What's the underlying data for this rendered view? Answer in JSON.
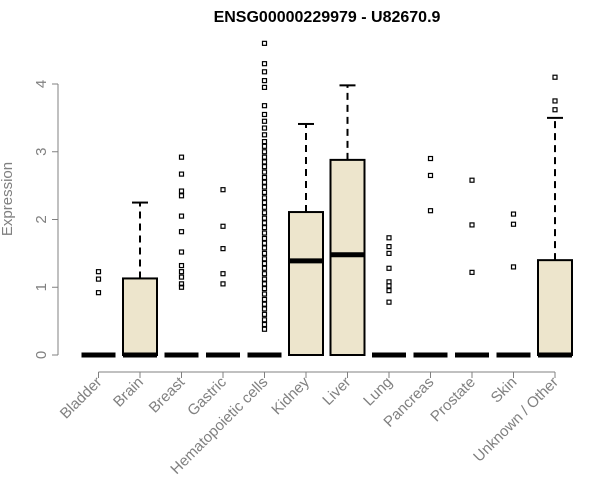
{
  "chart_data": {
    "type": "boxplot",
    "title": "ENSG00000229979 - U82670.9",
    "ylabel": "Expression",
    "ylim": [
      0,
      4.6
    ],
    "yticks": [
      0,
      1,
      2,
      3,
      4
    ],
    "categories": [
      "Bladder",
      "Brain",
      "Breast",
      "Gastric",
      "Hematopoietic cells",
      "Kidney",
      "Liver",
      "Lung",
      "Pancreas",
      "Prostate",
      "Skin",
      "Unknown / Other"
    ],
    "boxes": [
      {
        "q1": 0,
        "median": 0,
        "q3": 0,
        "wlo": 0,
        "whi": 0,
        "outliers": [
          0.92,
          1.12,
          1.23
        ]
      },
      {
        "q1": 0,
        "median": 0,
        "q3": 1.13,
        "wlo": 0,
        "whi": 2.25,
        "outliers": []
      },
      {
        "q1": 0,
        "median": 0,
        "q3": 0,
        "wlo": 0,
        "whi": 0,
        "outliers": [
          1.0,
          1.05,
          1.15,
          1.23,
          1.32,
          1.52,
          1.82,
          2.05,
          2.35,
          2.42,
          2.67,
          2.92
        ]
      },
      {
        "q1": 0,
        "median": 0,
        "q3": 0,
        "wlo": 0,
        "whi": 0,
        "outliers": [
          1.05,
          1.2,
          1.57,
          1.9,
          2.44
        ]
      },
      {
        "q1": 0,
        "median": 0,
        "q3": 0,
        "wlo": 0,
        "whi": 0,
        "outliers": [
          0.38,
          0.45,
          0.52,
          0.6,
          0.68,
          0.75,
          0.82,
          0.9,
          0.98,
          1.05,
          1.12,
          1.2,
          1.28,
          1.35,
          1.42,
          1.5,
          1.58,
          1.65,
          1.72,
          1.8,
          1.88,
          1.95,
          2.02,
          2.1,
          2.18,
          2.25,
          2.32,
          2.4,
          2.48,
          2.55,
          2.62,
          2.7,
          2.78,
          2.85,
          2.92,
          3.0,
          3.08,
          3.15,
          3.25,
          3.35,
          3.45,
          3.55,
          3.68,
          3.95,
          4.05,
          4.18,
          4.3,
          4.6
        ]
      },
      {
        "q1": 0,
        "median": 1.39,
        "q3": 2.11,
        "wlo": 0,
        "whi": 3.41,
        "outliers": []
      },
      {
        "q1": 0,
        "median": 1.48,
        "q3": 2.88,
        "wlo": 0,
        "whi": 3.98,
        "outliers": []
      },
      {
        "q1": 0,
        "median": 0,
        "q3": 0,
        "wlo": 0,
        "whi": 0,
        "outliers": [
          0.78,
          0.95,
          1.02,
          1.08,
          1.28,
          1.5,
          1.6,
          1.73
        ]
      },
      {
        "q1": 0,
        "median": 0,
        "q3": 0,
        "wlo": 0,
        "whi": 0,
        "outliers": [
          2.13,
          2.65,
          2.9
        ]
      },
      {
        "q1": 0,
        "median": 0,
        "q3": 0,
        "wlo": 0,
        "whi": 0,
        "outliers": [
          1.22,
          1.92,
          2.58
        ]
      },
      {
        "q1": 0,
        "median": 0,
        "q3": 0,
        "wlo": 0,
        "whi": 0,
        "outliers": [
          1.3,
          1.93,
          2.08
        ]
      },
      {
        "q1": 0,
        "median": 0,
        "q3": 1.4,
        "wlo": 0,
        "whi": 3.5,
        "outliers": [
          3.62,
          3.75,
          4.1
        ]
      }
    ],
    "grid": false,
    "legend": "none"
  },
  "colors": {
    "box_fill": "#ede5cc",
    "outline": "#000000",
    "axis_text": "#808080",
    "title": "#000000"
  }
}
